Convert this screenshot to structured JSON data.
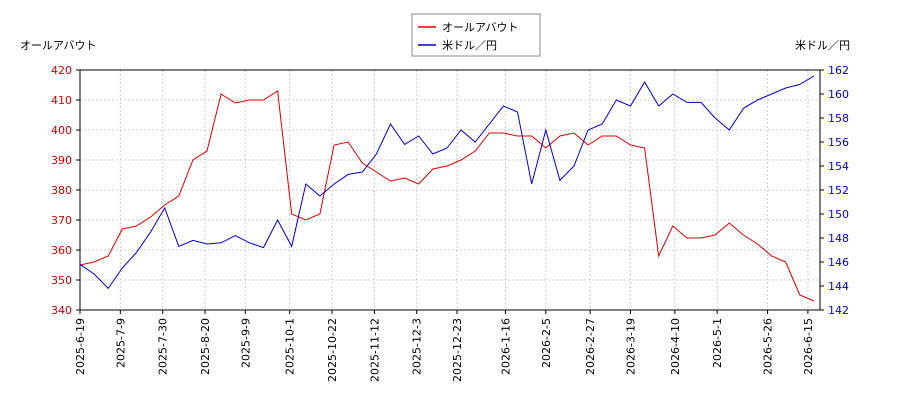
{
  "chart_data": {
    "type": "line",
    "y_label": "オールアバウト",
    "y2_label": "米ドル／円",
    "x": [
      "2025-6-19",
      "2025-6-26",
      "2025-7-3",
      "2025-7-10",
      "2025-7-17",
      "2025-7-24",
      "2025-7-31",
      "2025-8-7",
      "2025-8-14",
      "2025-8-21",
      "2025-8-28",
      "2025-9-4",
      "2025-9-11",
      "2025-9-18",
      "2025-9-25",
      "2025-10-2",
      "2025-10-9",
      "2025-10-16",
      "2025-10-23",
      "2025-10-30",
      "2025-11-6",
      "2025-11-13",
      "2025-11-20",
      "2025-11-27",
      "2025-12-4",
      "2025-12-11",
      "2025-12-18",
      "2025-12-25",
      "2026-1-1",
      "2026-1-8",
      "2026-1-15",
      "2026-1-22",
      "2026-1-29",
      "2026-2-5",
      "2026-2-12",
      "2026-2-19",
      "2026-2-26",
      "2026-3-5",
      "2026-3-12",
      "2026-3-19",
      "2026-3-26",
      "2026-4-2",
      "2026-4-9",
      "2026-4-16",
      "2026-4-23",
      "2026-4-30",
      "2026-5-7",
      "2026-5-14",
      "2026-5-21",
      "2026-5-28",
      "2026-6-4",
      "2026-6-11",
      "2026-6-18"
    ],
    "series": [
      {
        "name": "オールアバウト",
        "color": "#dd0000",
        "axis": "y",
        "values": [
          355,
          356,
          358,
          367,
          368,
          371,
          375,
          378,
          390,
          393,
          412,
          409,
          410,
          410,
          413,
          372,
          370,
          372,
          395,
          396,
          389,
          386,
          383,
          384,
          382,
          387,
          388,
          390,
          393,
          399,
          399,
          398,
          398,
          394,
          398,
          399,
          395,
          398,
          398,
          395,
          394,
          358,
          368,
          364,
          364,
          365,
          369,
          365,
          362,
          358,
          356,
          345,
          343
        ]
      },
      {
        "name": "米ドル／円",
        "color": "#0000cc",
        "axis": "y2",
        "values": [
          145.8,
          145,
          143.8,
          145.5,
          146.8,
          148.5,
          150.5,
          147.3,
          147.8,
          147.5,
          147.6,
          148.2,
          147.6,
          147.2,
          149.5,
          147.3,
          152.5,
          151.5,
          152.5,
          153.3,
          153.5,
          155,
          157.5,
          155.8,
          156.5,
          155,
          155.5,
          157,
          156,
          157.5,
          159,
          158.5,
          152.5,
          157,
          152.8,
          154,
          157,
          157.5,
          159.5,
          159,
          161,
          159,
          160,
          159.3,
          159.3,
          158,
          157,
          158.8,
          159.5,
          160,
          160.5,
          160.8,
          161.5
        ]
      }
    ],
    "xlim": [
      "2025-6-19",
      "2026-6-21"
    ],
    "xticks": [
      "2025-6-19",
      "2025-7-9",
      "2025-7-30",
      "2025-8-20",
      "2025-9-9",
      "2025-10-1",
      "2025-10-22",
      "2025-11-12",
      "2025-12-3",
      "2025-12-23",
      "2026-1-16",
      "2026-2-5",
      "2026-2-27",
      "2026-3-19",
      "2026-4-10",
      "2026-5-1",
      "2026-5-26",
      "2026-6-15"
    ],
    "ylim": [
      340,
      420
    ],
    "yticks": [
      340,
      350,
      360,
      370,
      380,
      390,
      400,
      410,
      420
    ],
    "y2lim": [
      142,
      162
    ],
    "y2ticks": [
      142,
      144,
      146,
      148,
      150,
      152,
      154,
      156,
      158,
      160,
      162
    ],
    "grid": true
  }
}
